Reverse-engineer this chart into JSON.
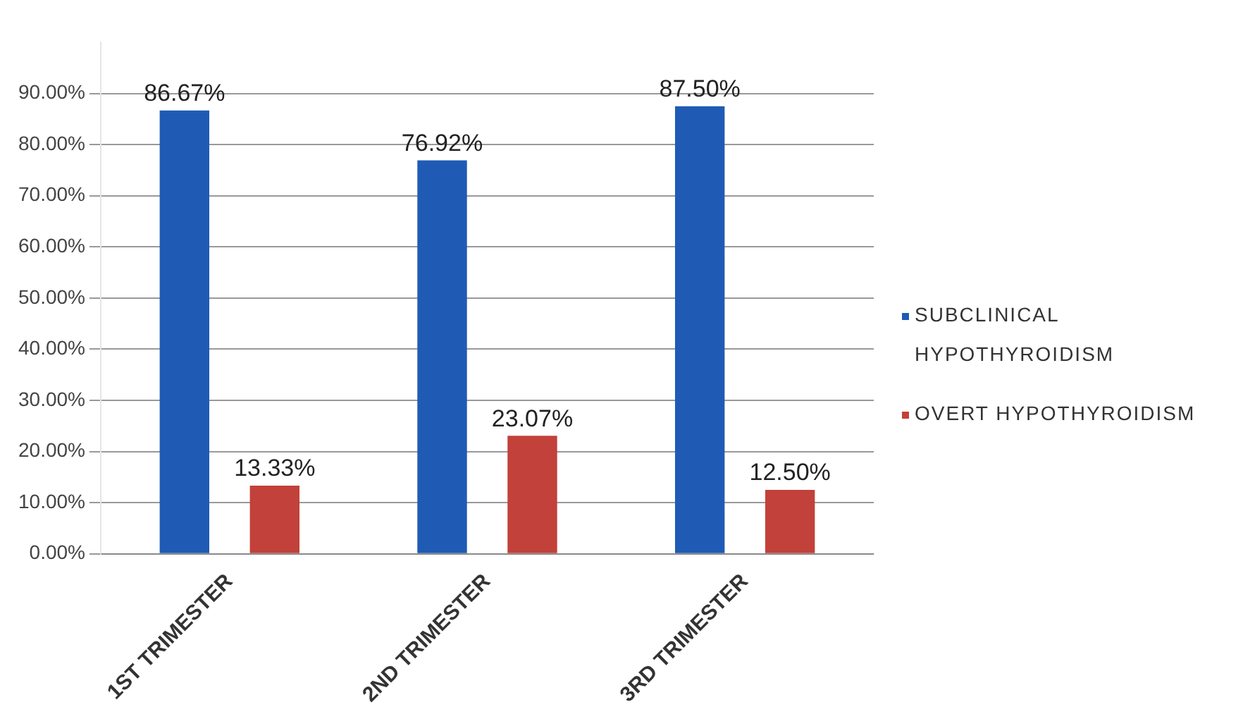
{
  "chart_data": {
    "type": "bar",
    "categories": [
      "1ST TRIMESTER",
      "2ND TRIMESTER",
      "3RD TRIMESTER"
    ],
    "series": [
      {
        "name": "SUBCLINICAL HYPOTHYROIDISM",
        "color": "#1f5bb5",
        "values": [
          86.67,
          76.92,
          87.5
        ],
        "value_labels": [
          "86.67%",
          "76.92%",
          "87.50%"
        ]
      },
      {
        "name": "OVERT HYPOTHYROIDISM",
        "color": "#c2413a",
        "values": [
          13.33,
          23.07,
          12.5
        ],
        "value_labels": [
          "13.33%",
          "23.07%",
          "12.50%"
        ]
      }
    ],
    "ylim": [
      0,
      100
    ],
    "yticks": [
      {
        "value": 0,
        "label": "0.00%"
      },
      {
        "value": 10,
        "label": "10.00%"
      },
      {
        "value": 20,
        "label": "20.00%"
      },
      {
        "value": 30,
        "label": "30.00%"
      },
      {
        "value": 40,
        "label": "40.00%"
      },
      {
        "value": 50,
        "label": "50.00%"
      },
      {
        "value": 60,
        "label": "60.00%"
      },
      {
        "value": 70,
        "label": "70.00%"
      },
      {
        "value": 80,
        "label": "80.00%"
      },
      {
        "value": 90,
        "label": "90.00%"
      }
    ],
    "grid": "y",
    "legend": "right"
  }
}
